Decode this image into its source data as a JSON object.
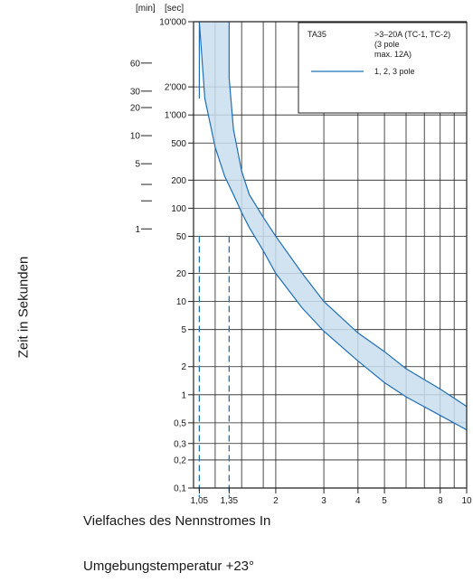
{
  "chart_data": {
    "type": "line",
    "title": "",
    "ylabel": "Zeit in Sekunden",
    "xlabel": "Vielfaches des Nennstromes In",
    "note": "Umgebungstemperatur +23°",
    "y_unit_min": "[min]",
    "y_unit_sec": "[sec]",
    "x_scale": "log",
    "y_scale": "log",
    "xlim": [
      1,
      10
    ],
    "ylim": [
      0.1,
      10000
    ],
    "x_ticks": [
      1.05,
      1.35,
      2,
      3,
      4,
      5,
      8,
      10
    ],
    "x_tick_labels": [
      "1,05",
      "1,35",
      "2",
      "3",
      "4",
      "5",
      "8",
      "10"
    ],
    "y_ticks": [
      0.1,
      0.2,
      0.3,
      0.5,
      1,
      2,
      5,
      10,
      20,
      50,
      100,
      200,
      500,
      1000,
      2000,
      10000
    ],
    "y_tick_labels": [
      "0,1",
      "0,2",
      "0,3",
      "0,5",
      "1",
      "2",
      "5",
      "10",
      "20",
      "50",
      "100",
      "200",
      "500",
      "1'000",
      "2'000",
      "10'000"
    ],
    "minute_ticks_seconds": [
      60,
      300,
      600,
      1200,
      1800,
      3600
    ],
    "minute_tick_labels": [
      "1",
      "",
      "",
      "5",
      "10",
      "20",
      "30",
      "60"
    ],
    "minute_tick_values_seconds": [
      60,
      120,
      180,
      300,
      600,
      1200,
      1800,
      3600
    ],
    "dashed_lines_x": [
      1.05,
      1.35
    ],
    "band": {
      "upper": {
        "x": [
          1.35,
          1.4,
          1.5,
          1.6,
          1.8,
          2.0,
          2.5,
          3.0,
          4.0,
          5.0,
          6.0,
          8.0,
          10.0
        ],
        "y": [
          2500,
          700,
          250,
          140,
          80,
          50,
          20,
          10,
          4.6,
          2.9,
          1.9,
          1.15,
          0.75
        ]
      },
      "lower": {
        "x": [
          1.05,
          1.1,
          1.2,
          1.3,
          1.4,
          1.5,
          1.6,
          1.8,
          2.0,
          2.5,
          3.0,
          4.0,
          5.0,
          6.0,
          8.0,
          10.0
        ],
        "y": [
          10000,
          1500,
          450,
          220,
          140,
          90,
          62,
          35,
          20,
          8.5,
          4.8,
          2.3,
          1.35,
          0.95,
          0.6,
          0.42
        ]
      },
      "fill_color": "#c9ddef",
      "line_color": "#1f6fb5"
    },
    "legend": {
      "placement": "top-right",
      "model": "TA35",
      "spec_lines": [
        ">3–20A (TC-1, TC-2)",
        "(3 pole",
        "max. 12A)"
      ],
      "series_label": "1, 2, 3 pole"
    },
    "grid": true
  }
}
